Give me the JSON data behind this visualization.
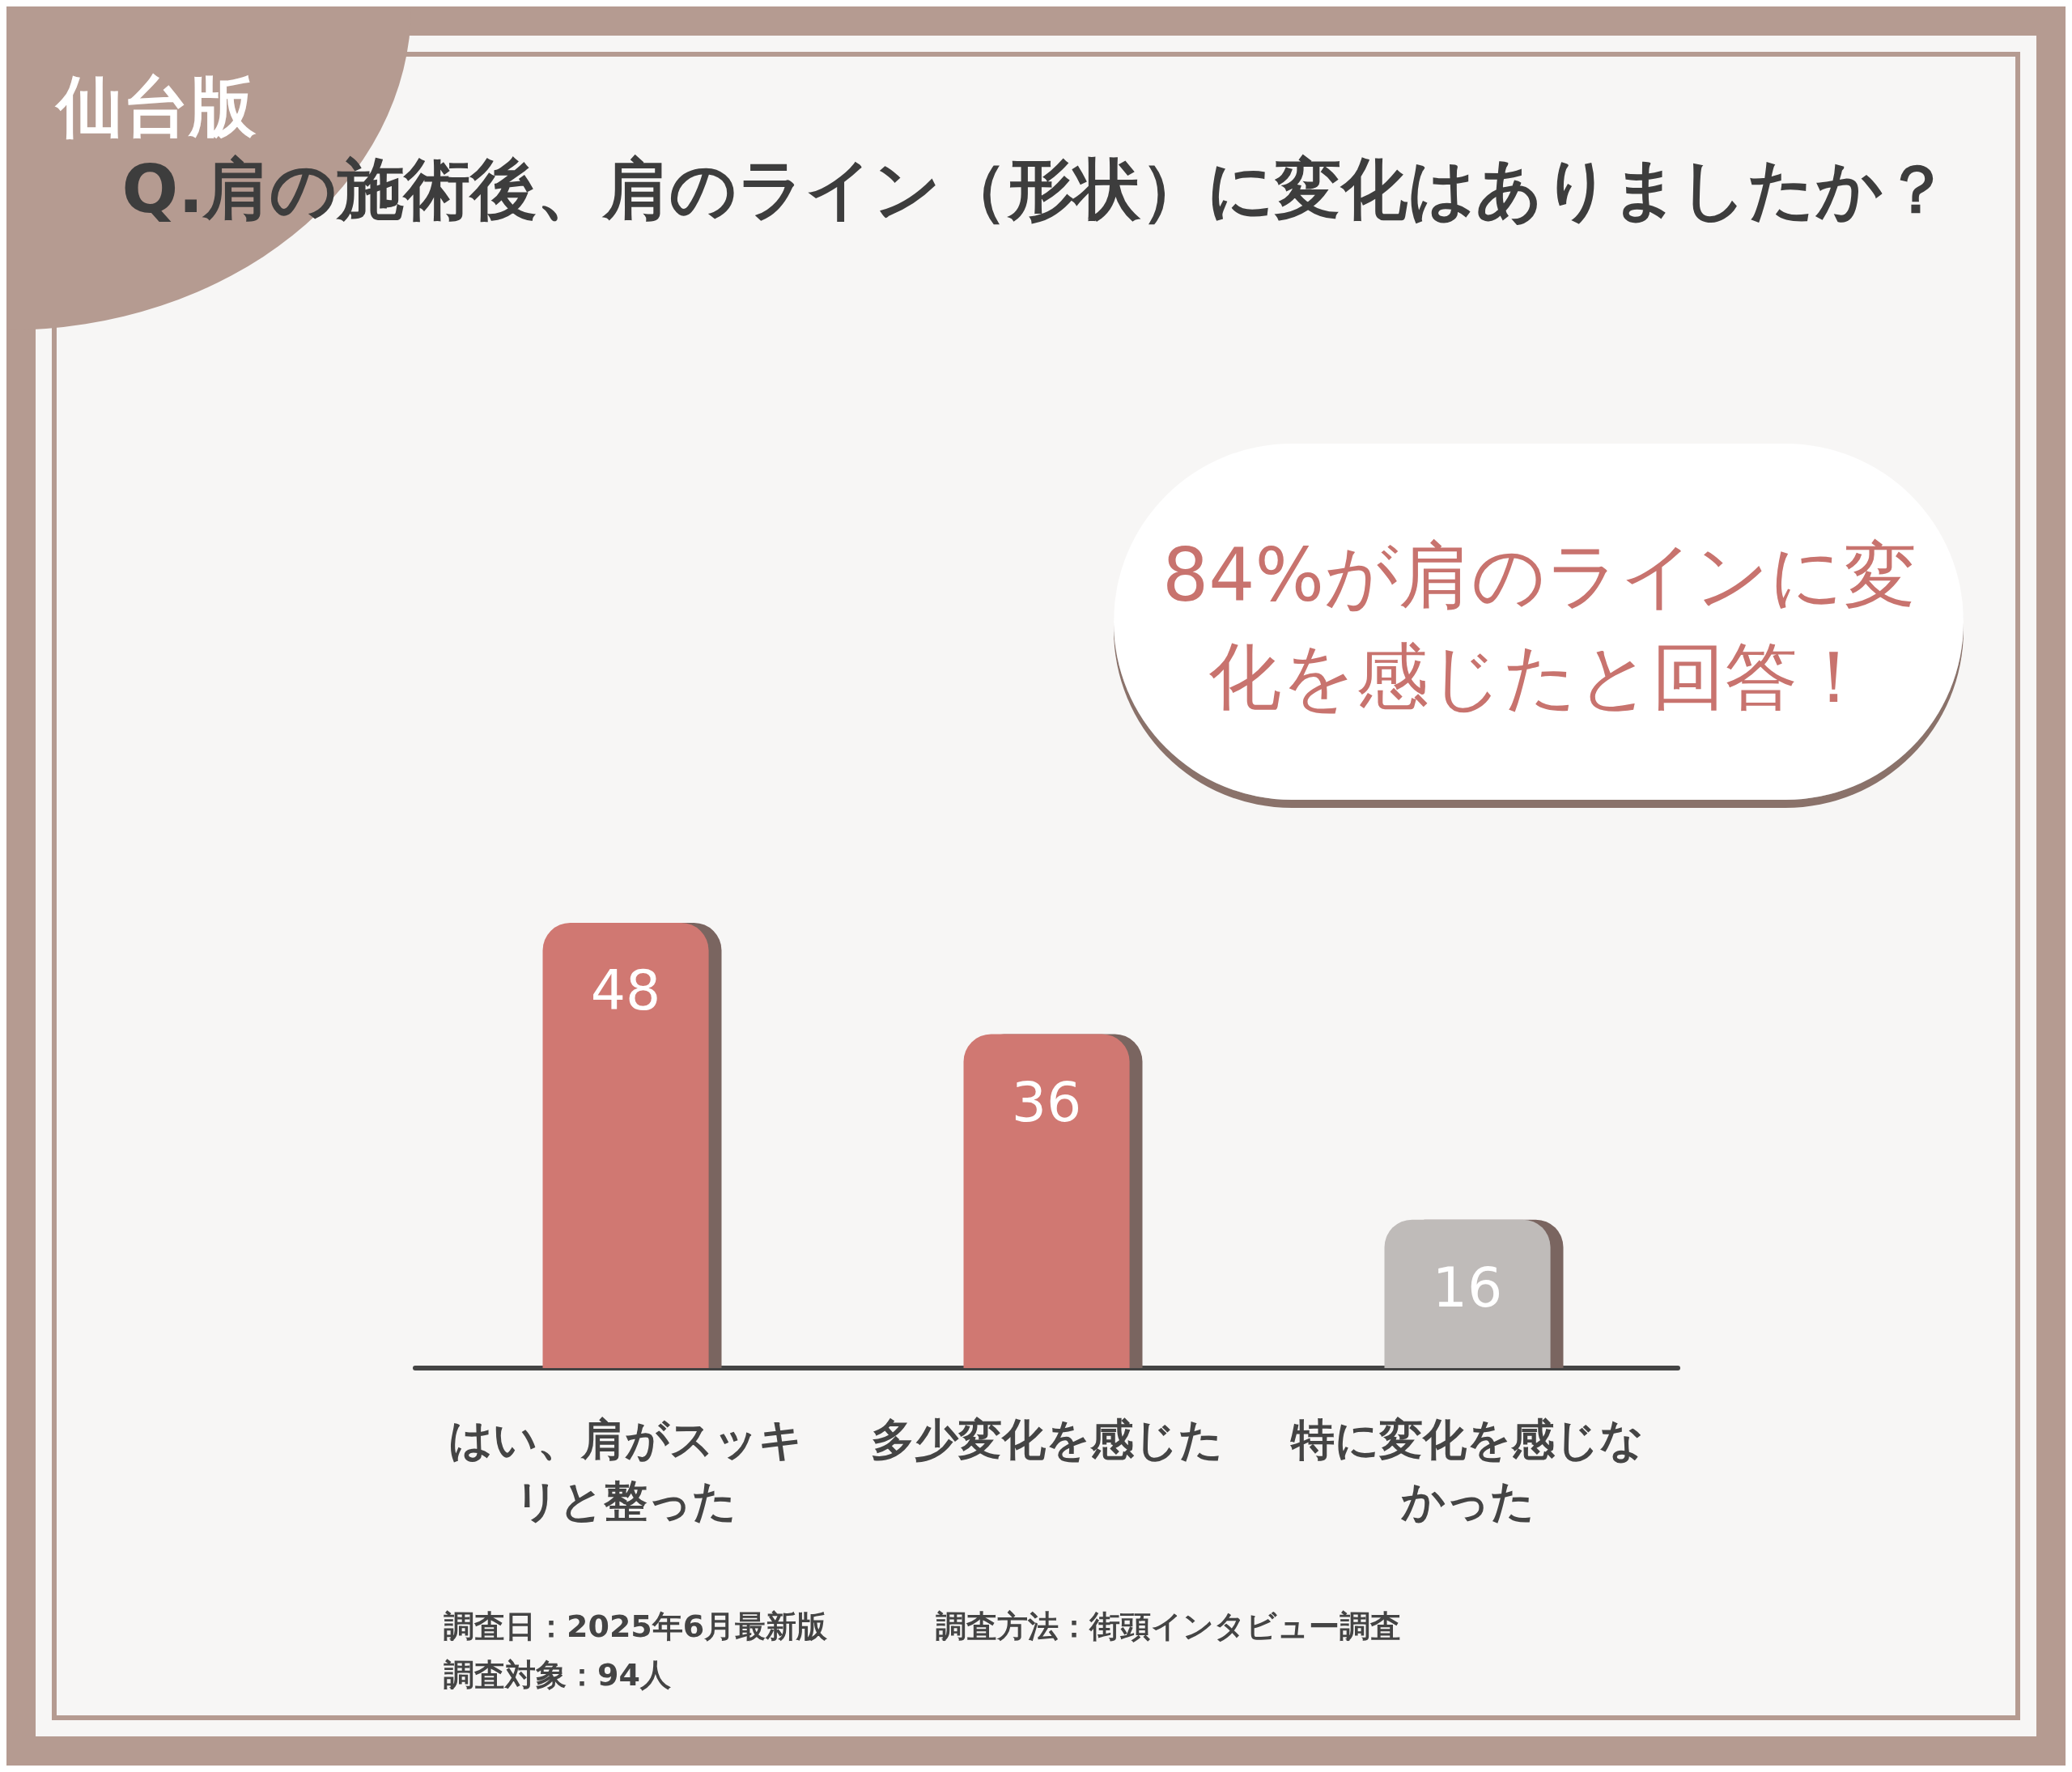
{
  "chart_data": {
    "type": "bar",
    "title": "Q.肩の施術後、肩のライン（形状）に変化はありましたか？",
    "categories": [
      "はい、肩がスッキリと整った",
      "多少変化を感じた",
      "特に変化を感じなかった"
    ],
    "values": [
      48,
      36,
      16
    ],
    "colors": [
      "#d07872",
      "#d07872",
      "#bfbbb9"
    ],
    "data_labels": true,
    "annotations": [
      "仙台版",
      "84%が肩のラインに変化を感じたと回答！",
      "調査日：2025年6月最新版",
      "調査方法：街頭インタビュー調査",
      "調査対象：94人"
    ]
  }
}
